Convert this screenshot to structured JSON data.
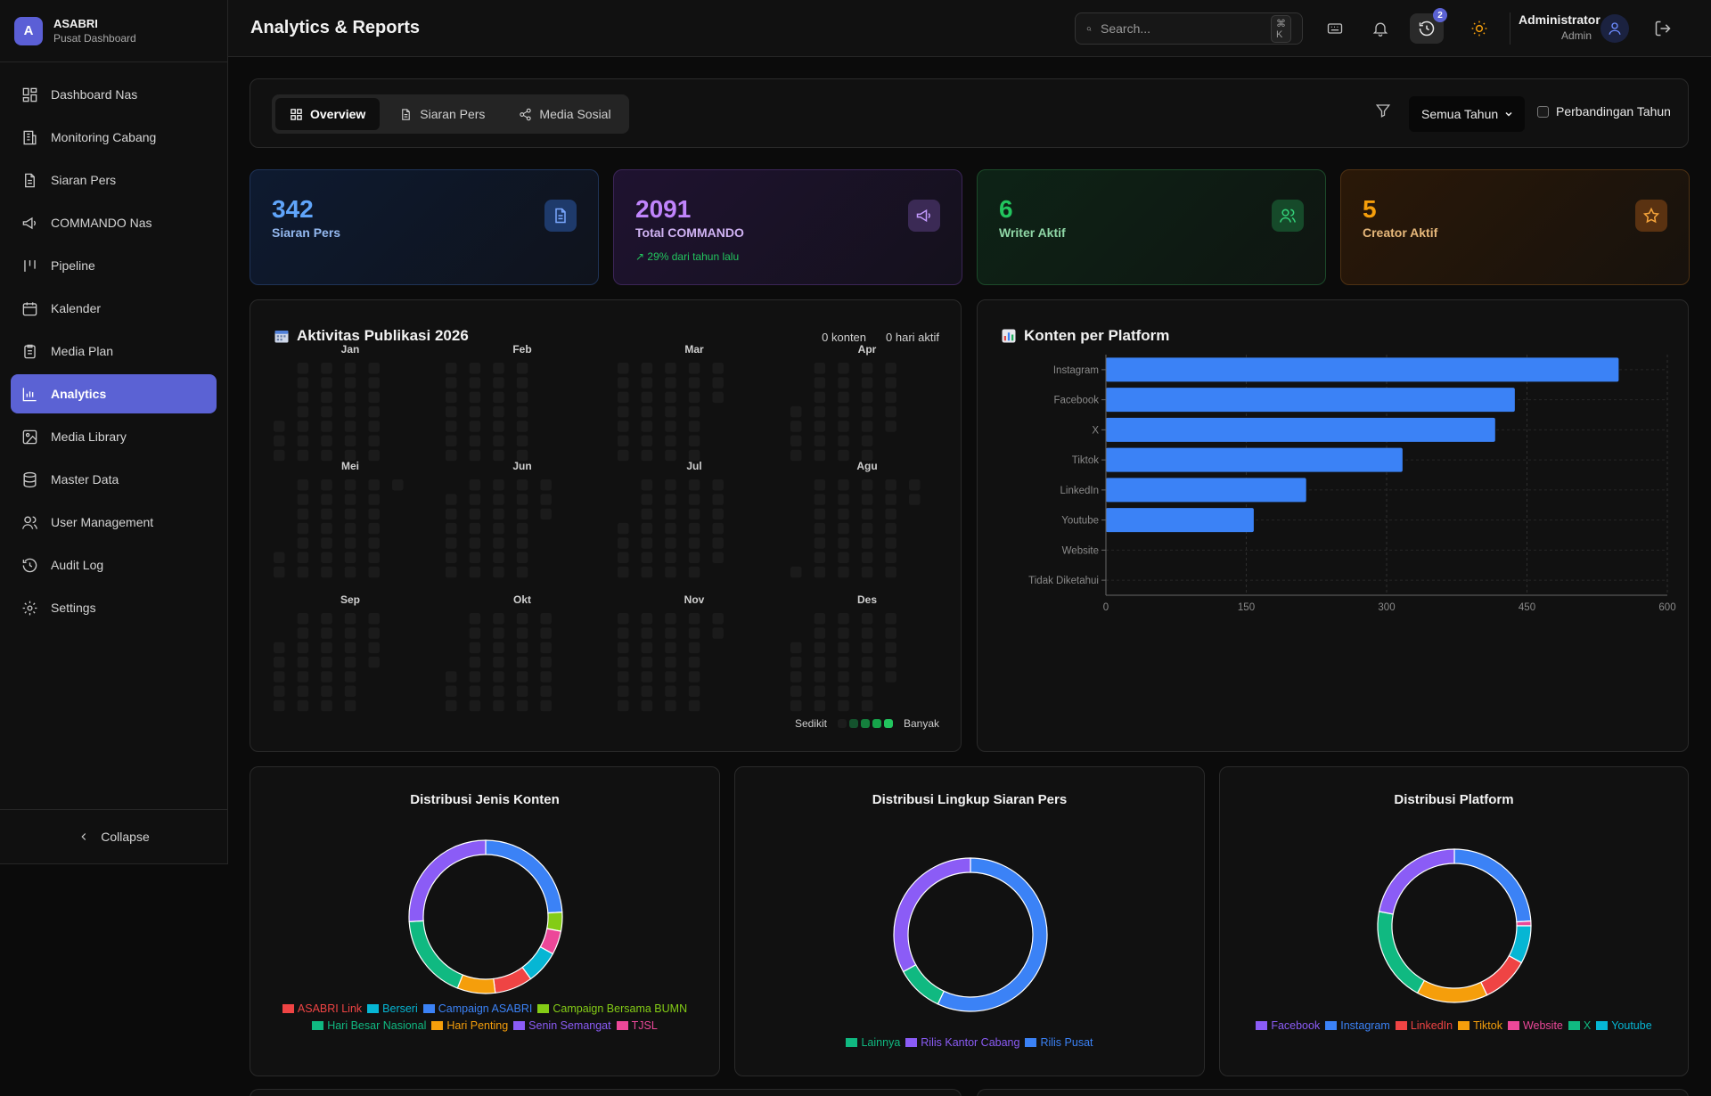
{
  "brand": {
    "initial": "A",
    "name": "ASABRI",
    "subtitle": "Pusat Dashboard"
  },
  "sidebar": {
    "items": [
      {
        "label": "Dashboard Nas",
        "icon": "dashboard-icon"
      },
      {
        "label": "Monitoring Cabang",
        "icon": "building-icon"
      },
      {
        "label": "Siaran Pers",
        "icon": "document-icon"
      },
      {
        "label": "COMMANDO Nas",
        "icon": "megaphone-icon"
      },
      {
        "label": "Pipeline",
        "icon": "pipeline-icon"
      },
      {
        "label": "Kalender",
        "icon": "calendar-icon"
      },
      {
        "label": "Media Plan",
        "icon": "clipboard-icon"
      },
      {
        "label": "Analytics",
        "icon": "bar-chart-icon",
        "active": true
      },
      {
        "label": "Media Library",
        "icon": "image-icon"
      },
      {
        "label": "Master Data",
        "icon": "database-icon"
      },
      {
        "label": "User Management",
        "icon": "users-icon"
      },
      {
        "label": "Audit Log",
        "icon": "history-icon"
      },
      {
        "label": "Settings",
        "icon": "gear-icon"
      }
    ],
    "collapse_label": "Collapse"
  },
  "header": {
    "title": "Analytics & Reports",
    "search_placeholder": "Search...",
    "search_shortcut": "⌘ K",
    "history_badge": "2",
    "user_name": "Administrator",
    "user_role": "Admin"
  },
  "toolbar": {
    "tabs": [
      {
        "label": "Overview",
        "icon": "grid-icon",
        "active": true
      },
      {
        "label": "Siaran Pers",
        "icon": "document-icon"
      },
      {
        "label": "Media Sosial",
        "icon": "share-icon"
      }
    ],
    "year_select": "Semua Tahun",
    "compare_label": "Perbandingan Tahun"
  },
  "stats": [
    {
      "value": "342",
      "label": "Siaran Pers",
      "color": "#60a5fa",
      "icon": "document-icon"
    },
    {
      "value": "2091",
      "label": "Total COMMANDO",
      "color": "#c084fc",
      "icon": "megaphone-icon",
      "trend": "29% dari tahun lalu"
    },
    {
      "value": "6",
      "label": "Writer Aktif",
      "color": "#22c55e",
      "icon": "users-icon"
    },
    {
      "value": "5",
      "label": "Creator Aktif",
      "color": "#f59e0b",
      "icon": "star-icon"
    }
  ],
  "heatmap": {
    "title": "Aktivitas Publikasi 2026",
    "count_label": "0 konten",
    "active_days_label": "0 hari aktif",
    "months": [
      "Jan",
      "Feb",
      "Mar",
      "Apr",
      "Mei",
      "Jun",
      "Jul",
      "Agu",
      "Sep",
      "Okt",
      "Nov",
      "Des"
    ],
    "legend_low": "Sedikit",
    "legend_high": "Banyak",
    "legend_colors": [
      "#1c1c1c",
      "#14532d",
      "#15803d",
      "#16a34a",
      "#22c55e"
    ]
  },
  "chart_data": [
    {
      "type": "bar",
      "orientation": "horizontal",
      "title": "Konten per Platform",
      "categories": [
        "Instagram",
        "Facebook",
        "X",
        "Tiktok",
        "LinkedIn",
        "Youtube",
        "Website",
        "Tidak Diketahui"
      ],
      "values": [
        548,
        437,
        416,
        317,
        214,
        158,
        0,
        0
      ],
      "xlim": [
        0,
        600
      ],
      "xticks": [
        0,
        150,
        300,
        450,
        600
      ],
      "color": "#3b82f6",
      "grid": true
    },
    {
      "type": "pie",
      "donut": true,
      "title": "Distribusi Jenis Konten",
      "labels": [
        "Campaign ASABRI",
        "Campaign Bersama BUMN",
        "TJSL",
        "Berseri",
        "ASABRI Link",
        "Hari Penting",
        "Hari Besar Nasional",
        "Senin Semangat"
      ],
      "values": [
        24,
        4,
        5,
        7,
        8,
        8,
        18,
        26
      ],
      "colors": [
        "#3b82f6",
        "#84cc16",
        "#ec4899",
        "#06b6d4",
        "#ef4444",
        "#f59e0b",
        "#10b981",
        "#8b5cf6"
      ],
      "legend": [
        "ASABRI Link",
        "Berseri",
        "Campaign ASABRI",
        "Campaign Bersama BUMN",
        "Hari Besar Nasional",
        "Hari Penting",
        "Senin Semangat",
        "TJSL"
      ],
      "legend_colors": [
        "#ef4444",
        "#06b6d4",
        "#3b82f6",
        "#84cc16",
        "#10b981",
        "#f59e0b",
        "#8b5cf6",
        "#ec4899"
      ]
    },
    {
      "type": "pie",
      "donut": true,
      "title": "Distribusi Lingkup Siaran Pers",
      "labels": [
        "Rilis Pusat",
        "Lainnya",
        "Rilis Kantor Cabang"
      ],
      "values": [
        57,
        10,
        33
      ],
      "colors": [
        "#3b82f6",
        "#10b981",
        "#8b5cf6"
      ],
      "legend": [
        "Lainnya",
        "Rilis Kantor Cabang",
        "Rilis Pusat"
      ],
      "legend_colors": [
        "#10b981",
        "#8b5cf6",
        "#3b82f6"
      ]
    },
    {
      "type": "pie",
      "donut": true,
      "title": "Distribusi Platform",
      "labels": [
        "Instagram",
        "Website",
        "Youtube",
        "LinkedIn",
        "Tiktok",
        "X",
        "Facebook"
      ],
      "values": [
        24,
        1,
        8,
        10,
        15,
        20,
        22
      ],
      "colors": [
        "#3b82f6",
        "#ec4899",
        "#06b6d4",
        "#ef4444",
        "#f59e0b",
        "#10b981",
        "#8b5cf6"
      ],
      "legend": [
        "Facebook",
        "Instagram",
        "LinkedIn",
        "Tiktok",
        "Website",
        "X",
        "Youtube"
      ],
      "legend_colors": [
        "#8b5cf6",
        "#3b82f6",
        "#ef4444",
        "#f59e0b",
        "#ec4899",
        "#10b981",
        "#06b6d4"
      ]
    }
  ]
}
